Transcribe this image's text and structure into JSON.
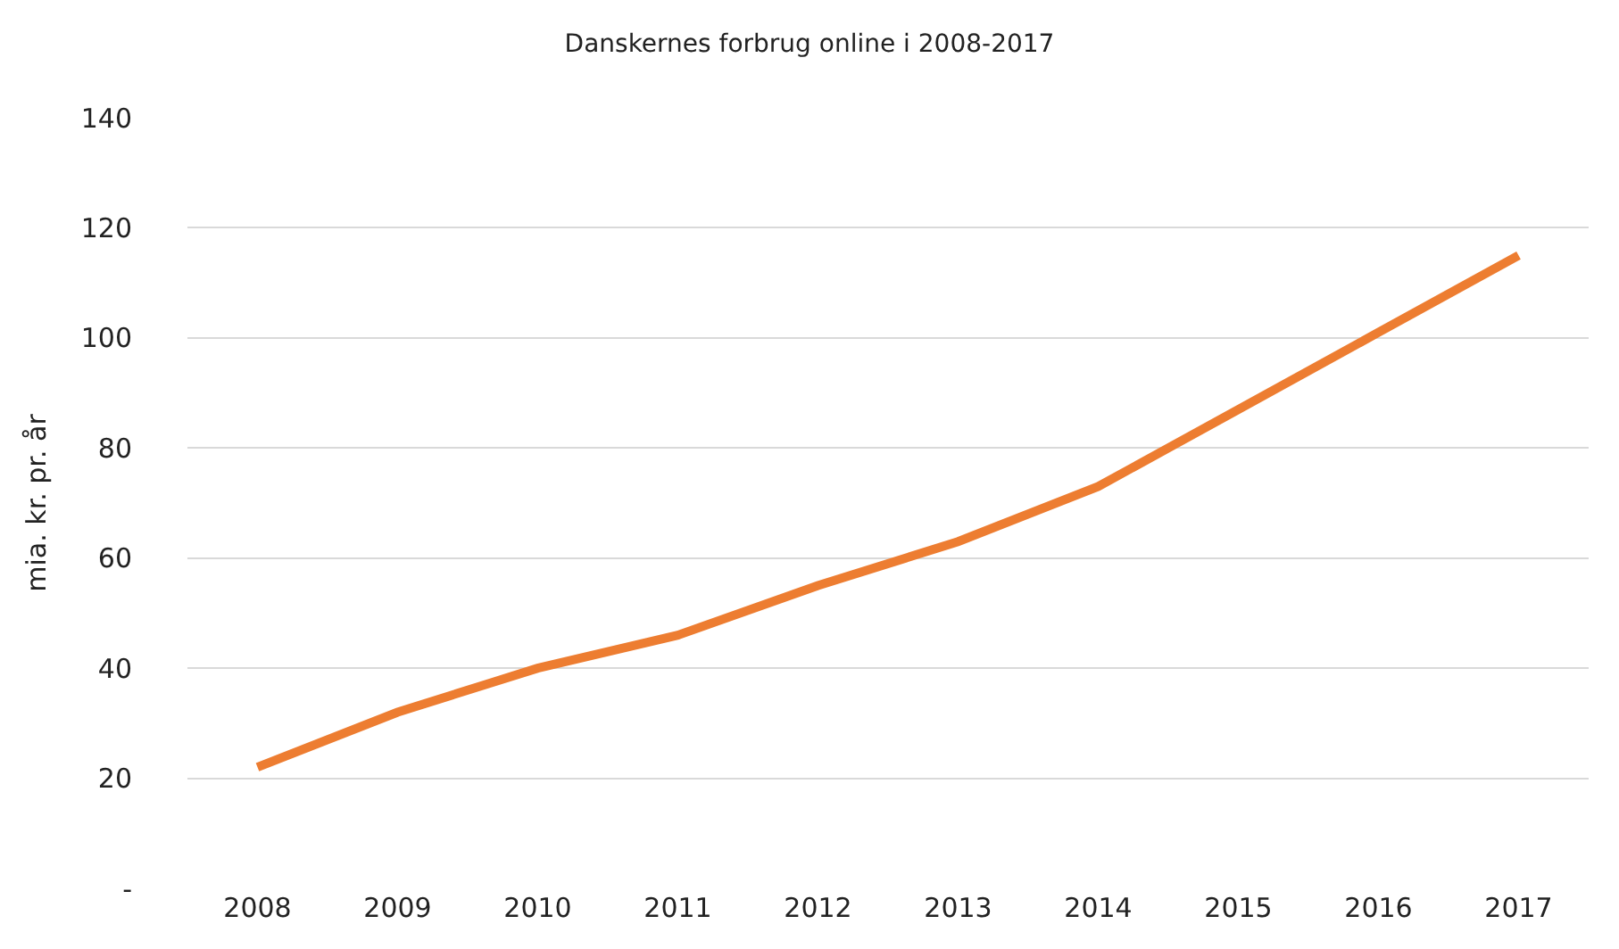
{
  "chart_data": {
    "type": "line",
    "title": "Danskernes forbrug online i 2008-2017",
    "ylabel": "mia. kr. pr. år",
    "categories": [
      "2008",
      "2009",
      "2010",
      "2011",
      "2012",
      "2013",
      "2014",
      "2015",
      "2016",
      "2017"
    ],
    "series": [
      {
        "color": "#ed7d31",
        "values": [
          22,
          32,
          40,
          46,
          55,
          63,
          73,
          87,
          101,
          115
        ]
      }
    ],
    "ylim": [
      0,
      140
    ],
    "yticks": [
      {
        "value": 0,
        "label": "-"
      },
      20,
      40,
      60,
      80,
      100,
      120,
      140
    ],
    "grid": "y",
    "legend": false,
    "marker": "none",
    "line_style": "solid"
  }
}
